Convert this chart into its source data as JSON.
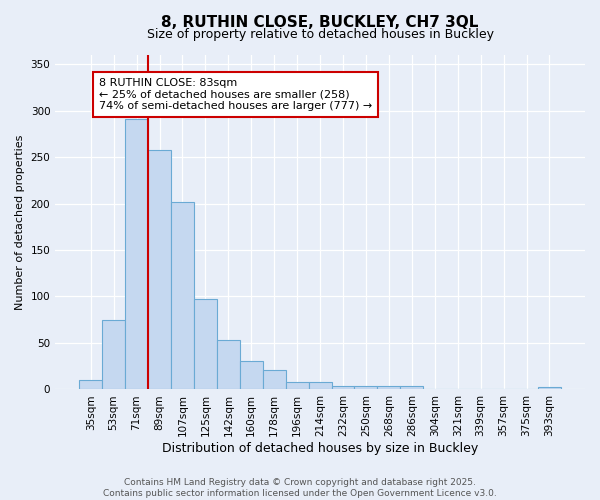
{
  "title1": "8, RUTHIN CLOSE, BUCKLEY, CH7 3QL",
  "title2": "Size of property relative to detached houses in Buckley",
  "xlabel": "Distribution of detached houses by size in Buckley",
  "ylabel": "Number of detached properties",
  "categories": [
    "35sqm",
    "53sqm",
    "71sqm",
    "89sqm",
    "107sqm",
    "125sqm",
    "142sqm",
    "160sqm",
    "178sqm",
    "196sqm",
    "214sqm",
    "232sqm",
    "250sqm",
    "268sqm",
    "286sqm",
    "304sqm",
    "321sqm",
    "339sqm",
    "357sqm",
    "375sqm",
    "393sqm"
  ],
  "values": [
    10,
    75,
    291,
    258,
    202,
    97,
    53,
    31,
    21,
    8,
    8,
    4,
    4,
    4,
    4,
    0,
    0,
    0,
    0,
    0,
    3
  ],
  "bar_color": "#c5d8f0",
  "bar_edge_color": "#6aaad4",
  "vline_color": "#cc0000",
  "annotation_text": "8 RUTHIN CLOSE: 83sqm\n← 25% of detached houses are smaller (258)\n74% of semi-detached houses are larger (777) →",
  "annotation_box_color": "white",
  "annotation_box_edge_color": "#cc0000",
  "ylim": [
    0,
    360
  ],
  "yticks": [
    0,
    50,
    100,
    150,
    200,
    250,
    300,
    350
  ],
  "footer": "Contains HM Land Registry data © Crown copyright and database right 2025.\nContains public sector information licensed under the Open Government Licence v3.0.",
  "bg_color": "#e8eef8",
  "grid_color": "white",
  "title1_fontsize": 11,
  "title2_fontsize": 9,
  "xlabel_fontsize": 9,
  "ylabel_fontsize": 8,
  "tick_fontsize": 7.5,
  "annotation_fontsize": 8,
  "footer_fontsize": 6.5,
  "vline_xindex": 2.5
}
